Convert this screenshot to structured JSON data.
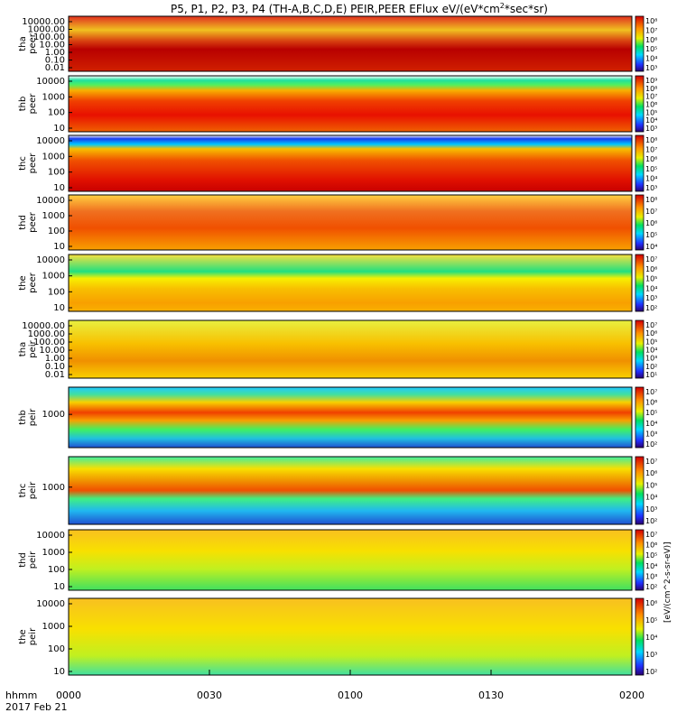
{
  "chart_data": {
    "type": "heatmap",
    "title": "P5, P1, P2, P3, P4 (TH-A,B,C,D,E) PEIR,PEER EFlux eV/(eV*cm",
    "title_sup": "2",
    "title_end": "*sec*sr)",
    "xaxis": {
      "label": "hhmm",
      "date": "2017 Feb 21",
      "range": [
        0,
        120
      ],
      "ticks": [
        {
          "value": 0,
          "label": "0000"
        },
        {
          "value": 30,
          "label": "0030"
        },
        {
          "value": 60,
          "label": "0100"
        },
        {
          "value": 90,
          "label": "0130"
        },
        {
          "value": 120,
          "label": "0200"
        }
      ]
    },
    "colorbar_unit": "[eV/(cm^2-s-sr-eV)]",
    "panels": [
      {
        "probe": "tha",
        "species": "peer",
        "ylabels": [
          "10000.00",
          "1000.00",
          "100.00",
          "10.00",
          "1.00",
          "0.10",
          "0.01"
        ],
        "cbar": [
          "10⁸",
          "10⁷",
          "10⁶",
          "10⁵",
          "10⁴",
          "10³"
        ]
      },
      {
        "probe": "thb",
        "species": "peer",
        "ylabels": [
          "10000",
          "1000",
          "100",
          "10"
        ],
        "cbar": [
          "10⁹",
          "10⁸",
          "10⁷",
          "10⁶",
          "10⁵",
          "10⁴",
          "10³"
        ]
      },
      {
        "probe": "thc",
        "species": "peer",
        "ylabels": [
          "10000",
          "1000",
          "100",
          "10"
        ],
        "cbar": [
          "10⁸",
          "10⁷",
          "10⁶",
          "10⁵",
          "10⁴",
          "10³"
        ]
      },
      {
        "probe": "thd",
        "species": "peer",
        "ylabels": [
          "10000",
          "1000",
          "100",
          "10"
        ],
        "cbar": [
          "10⁸",
          "10⁷",
          "10⁶",
          "10⁵",
          "10⁴"
        ]
      },
      {
        "probe": "the",
        "species": "peer",
        "ylabels": [
          "10000",
          "1000",
          "100",
          "10"
        ],
        "cbar": [
          "10⁷",
          "10⁶",
          "10⁵",
          "10⁴",
          "10³",
          "10²"
        ]
      },
      {
        "probe": "tha",
        "species": "peir",
        "ylabels": [
          "10000.00",
          "1000.00",
          "100.00",
          "10.00",
          "1.00",
          "0.10",
          "0.01"
        ],
        "cbar": [
          "10⁷",
          "10⁶",
          "10⁵",
          "10⁴",
          "10³",
          "10²",
          "10¹"
        ]
      },
      {
        "probe": "thb",
        "species": "peir",
        "ylabels": [
          "1000"
        ],
        "cbar": [
          "10⁷",
          "10⁶",
          "10⁵",
          "10⁴",
          "10³",
          "10²"
        ]
      },
      {
        "probe": "thc",
        "species": "peir",
        "ylabels": [
          "1000"
        ],
        "cbar": [
          "10⁷",
          "10⁶",
          "10⁵",
          "10⁴",
          "10³",
          "10²"
        ]
      },
      {
        "probe": "thd",
        "species": "peir",
        "ylabels": [
          "10000",
          "1000",
          "100",
          "10"
        ],
        "cbar": [
          "10⁷",
          "10⁶",
          "10⁵",
          "10⁴",
          "10³",
          "10²"
        ]
      },
      {
        "probe": "the",
        "species": "peir",
        "ylabels": [
          "10000",
          "1000",
          "100",
          "10"
        ],
        "cbar": [
          "10⁶",
          "10⁵",
          "10⁴",
          "10³",
          "10²"
        ]
      }
    ]
  }
}
